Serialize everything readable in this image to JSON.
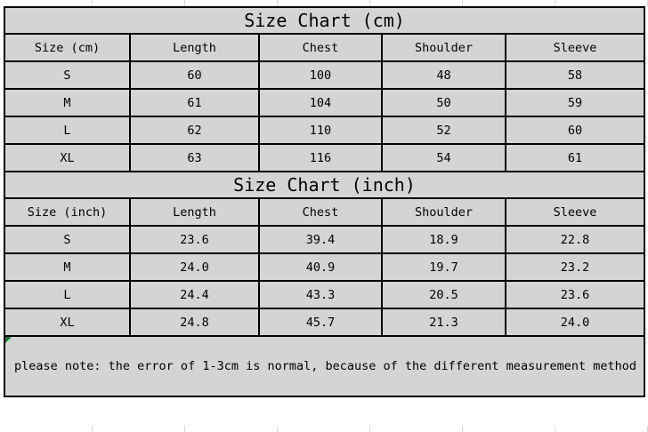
{
  "chart_data": [
    {
      "type": "table",
      "title": "Size Chart (cm)",
      "columns": [
        "Size (cm)",
        "Length",
        "Chest",
        "Shoulder",
        "Sleeve"
      ],
      "rows": [
        [
          "S",
          "60",
          "100",
          "48",
          "58"
        ],
        [
          "M",
          "61",
          "104",
          "50",
          "59"
        ],
        [
          "L",
          "62",
          "110",
          "52",
          "60"
        ],
        [
          "XL",
          "63",
          "116",
          "54",
          "61"
        ]
      ]
    },
    {
      "type": "table",
      "title": "Size Chart (inch)",
      "columns": [
        "Size (inch)",
        "Length",
        "Chest",
        "Shoulder",
        "Sleeve"
      ],
      "rows": [
        [
          "S",
          "23.6",
          "39.4",
          "18.9",
          "22.8"
        ],
        [
          "M",
          "24.0",
          "40.9",
          "19.7",
          "23.2"
        ],
        [
          "L",
          "24.4",
          "43.3",
          "20.5",
          "23.6"
        ],
        [
          "XL",
          "24.8",
          "45.7",
          "21.3",
          "24.0"
        ]
      ]
    }
  ],
  "note": "please note: the error of 1-3cm is normal, because of the different measurement method",
  "colors": {
    "cell_bg": "#d4d4d4",
    "border": "#000000",
    "page_bg": "#ffffff",
    "gridline": "#d9d9d9",
    "indicator": "#1e7a2e"
  }
}
